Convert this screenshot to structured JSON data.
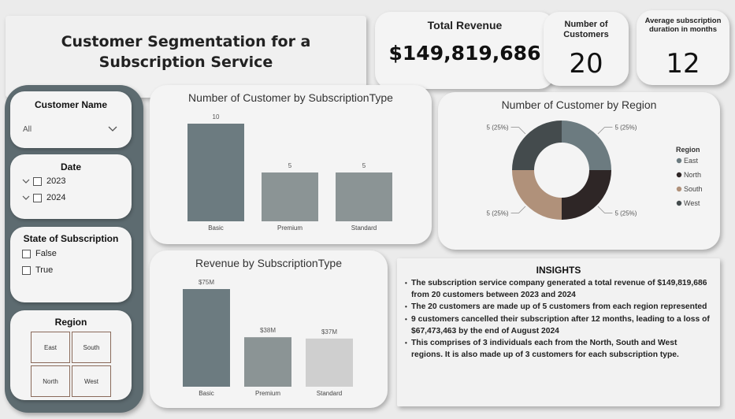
{
  "title": "Customer Segmentation for a Subscription Service",
  "kpis": {
    "revenue": {
      "label": "Total Revenue",
      "value": "$149,819,686"
    },
    "customers": {
      "label": "Number of Customers",
      "value": "20"
    },
    "duration": {
      "label": "Average subscription duration in months",
      "value": "12"
    }
  },
  "slicers": {
    "customer_name": {
      "title": "Customer Name",
      "selected": "All"
    },
    "date": {
      "title": "Date",
      "options": [
        "2023",
        "2024"
      ]
    },
    "state": {
      "title": "State of Subscription",
      "options": [
        "False",
        "True"
      ]
    },
    "region": {
      "title": "Region",
      "tiles": [
        "East",
        "South",
        "North",
        "West"
      ]
    }
  },
  "colors": {
    "bar_basic": "#6c7b80",
    "bar_premium": "#8b9495",
    "bar_standard": "#8b9495",
    "bar_standard_rev": "#cfcfcf",
    "east": "#6c7b80",
    "north": "#2e2626",
    "south": "#b0917a",
    "west": "#444b4d",
    "slicer_panel": "#5d6b70"
  },
  "chart_data": [
    {
      "type": "bar",
      "title": "Number of Customer by SubscriptionType",
      "categories": [
        "Basic",
        "Premium",
        "Standard"
      ],
      "values": [
        10,
        5,
        5
      ],
      "data_labels": [
        "10",
        "5",
        "5"
      ],
      "ylim": [
        0,
        10
      ]
    },
    {
      "type": "pie",
      "title": "Number of Customer by Region",
      "legend_title": "Region",
      "legend_position": "right",
      "categories": [
        "East",
        "North",
        "South",
        "West"
      ],
      "values": [
        5,
        5,
        5,
        5
      ],
      "data_labels": [
        "5 (25%)",
        "5 (25%)",
        "5 (25%)",
        "5 (25%)"
      ]
    },
    {
      "type": "bar",
      "title": "Revenue by SubscriptionType",
      "categories": [
        "Basic",
        "Premium",
        "Standard"
      ],
      "values": [
        75,
        38,
        37
      ],
      "data_labels": [
        "$75M",
        "$38M",
        "$37M"
      ],
      "ylim": [
        0,
        75
      ]
    }
  ],
  "insights": {
    "heading": "INSIGHTS",
    "items": [
      "The subscription service company generated a total revenue of $149,819,686 from 20 customers between 2023 and 2024",
      "The 20 customers are made up of 5 customers from each region represented",
      "9 customers cancelled their subscription after 12 months, leading to a loss of $67,473,463 by the end of August 2024",
      "This comprises of 3 individuals each from the North, South and West regions. It is also made up of 3 customers for each subscription type."
    ]
  }
}
